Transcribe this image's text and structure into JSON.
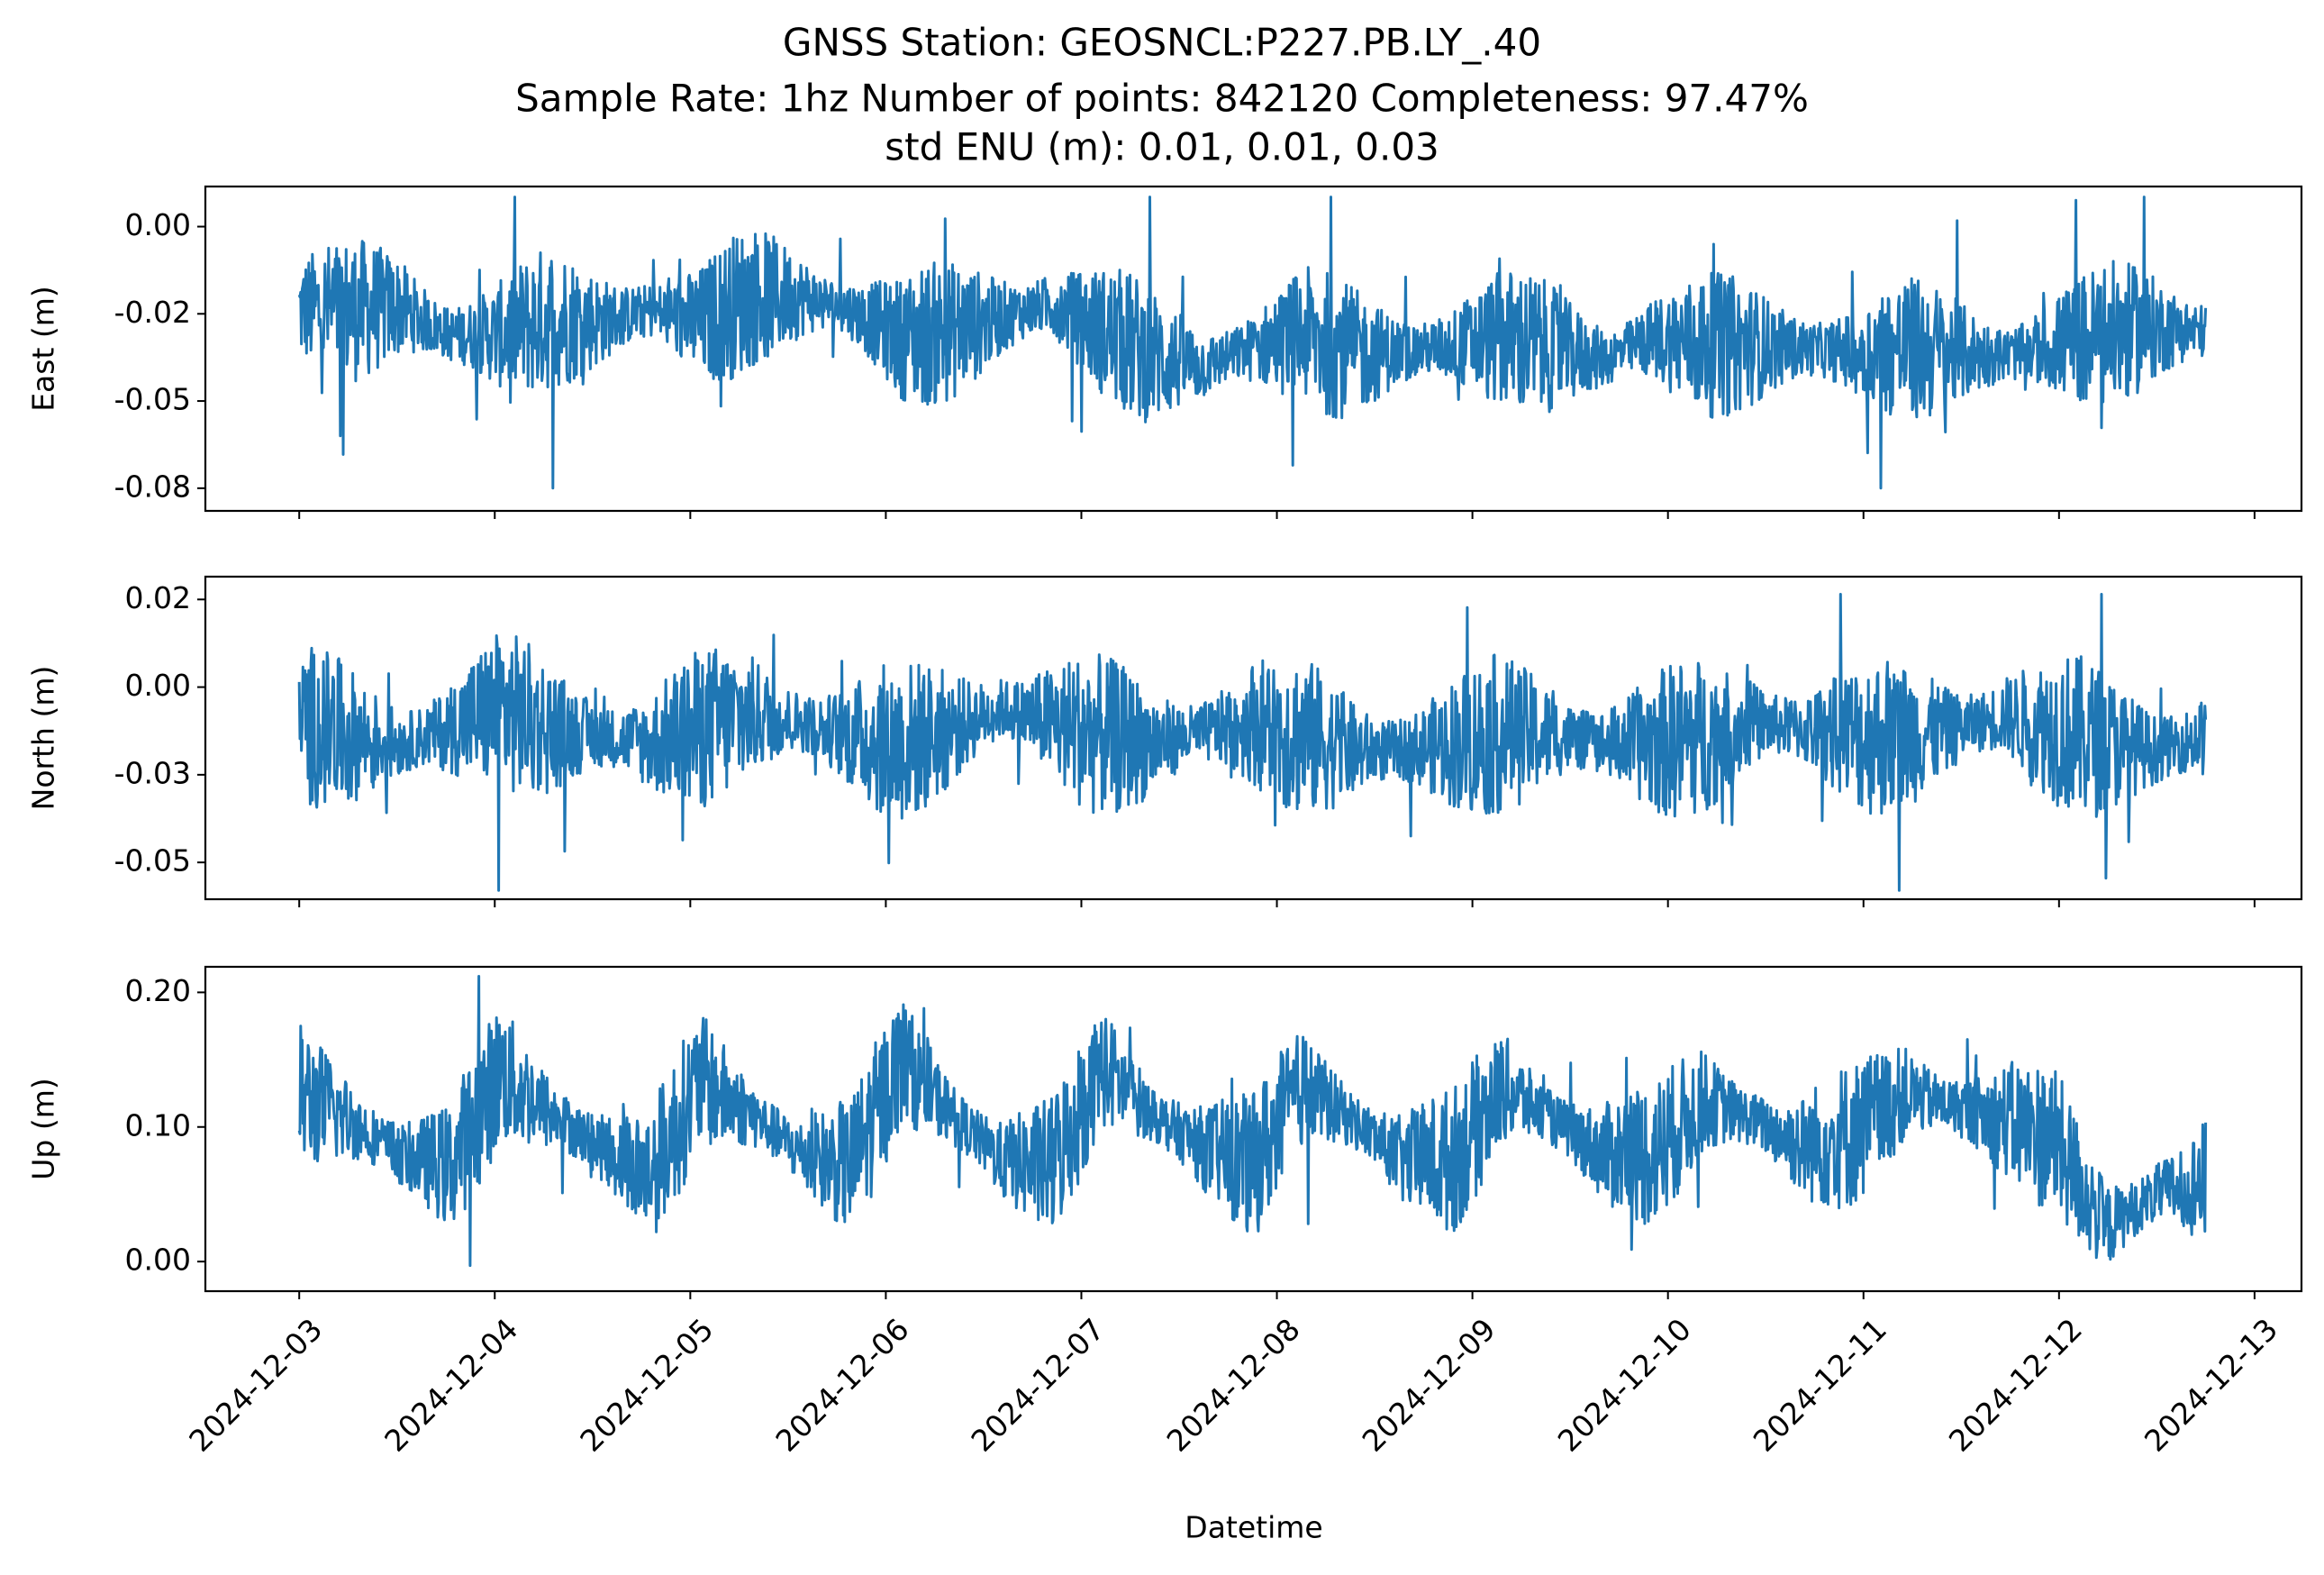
{
  "chart_data": {
    "type": "line",
    "title": [
      "GNSS Station: GEOSNCL:P227.PB.LY_.40",
      "Sample Rate: 1hz   Number of points: 842120    Completeness:  97.47%",
      "std ENU (m):  0.01, 0.01, 0.03"
    ],
    "xlabel": "Datetime",
    "x_ticks": [
      "2024-12-03",
      "2024-12-04",
      "2024-12-05",
      "2024-12-06",
      "2024-12-07",
      "2024-12-08",
      "2024-12-09",
      "2024-12-10",
      "2024-12-11",
      "2024-12-12",
      "2024-12-13"
    ],
    "x_range_days": [
      -0.48,
      10.24
    ],
    "data_range_days": [
      0.0,
      9.75
    ],
    "series_color": "#1f77b4",
    "panels": [
      {
        "name": "East",
        "ylabel": "East (m)",
        "ylim": [
          -0.0815,
          0.0115
        ],
        "y_ticks": [
          0.0,
          -0.025,
          -0.05,
          -0.075
        ],
        "y_tick_labels": [
          "0.00",
          "-0.02",
          "-0.05",
          "-0.08"
        ],
        "center_profile": [
          -0.024,
          -0.024,
          -0.023,
          -0.031,
          -0.031,
          -0.026,
          -0.027,
          -0.024,
          -0.028,
          -0.02,
          -0.02,
          -0.024,
          -0.032,
          -0.03,
          -0.026,
          -0.022,
          -0.03,
          -0.037,
          -0.04,
          -0.035,
          -0.031,
          -0.036,
          -0.036,
          -0.034,
          -0.032,
          -0.035,
          -0.038,
          -0.032,
          -0.034,
          -0.034,
          -0.035,
          -0.036,
          -0.035,
          -0.036,
          -0.037,
          -0.034,
          -0.031,
          -0.029,
          -0.03
        ],
        "half_range": 0.019,
        "min": -0.075,
        "max": 0.0085
      },
      {
        "name": "North",
        "ylabel": "North (m)",
        "ylim": [
          -0.0605,
          0.0315
        ],
        "y_ticks": [
          0.025,
          0.0,
          -0.025,
          -0.05
        ],
        "y_tick_labels": [
          "0.02",
          "0.00",
          "-0.03",
          "-0.05"
        ],
        "center_profile": [
          -0.01,
          -0.014,
          -0.016,
          -0.012,
          -0.006,
          -0.012,
          -0.014,
          -0.016,
          -0.012,
          -0.008,
          -0.01,
          -0.014,
          -0.016,
          -0.012,
          -0.006,
          -0.01,
          -0.014,
          -0.016,
          -0.013,
          -0.01,
          -0.014,
          -0.018,
          -0.018,
          -0.016,
          -0.013,
          -0.014,
          -0.016,
          -0.016,
          -0.014,
          -0.01,
          -0.012,
          -0.014,
          -0.014,
          -0.012,
          -0.008,
          -0.012,
          -0.016,
          -0.018,
          -0.014
        ],
        "half_range": 0.021,
        "min": -0.058,
        "max": 0.0265
      },
      {
        "name": "Up",
        "ylabel": "Up (m)",
        "ylim": [
          -0.022,
          0.219
        ],
        "y_ticks": [
          0.0,
          0.1,
          0.2
        ],
        "y_tick_labels": [
          "0.00",
          "0.10",
          "0.20"
        ],
        "center_profile": [
          0.125,
          0.105,
          0.08,
          0.07,
          0.14,
          0.11,
          0.085,
          0.065,
          0.135,
          0.11,
          0.08,
          0.07,
          0.15,
          0.11,
          0.075,
          0.07,
          0.145,
          0.11,
          0.085,
          0.07,
          0.13,
          0.105,
          0.075,
          0.075,
          0.13,
          0.105,
          0.08,
          0.08,
          0.12,
          0.105,
          0.085,
          0.095,
          0.125,
          0.115,
          0.105,
          0.09,
          0.025,
          0.05,
          0.06
        ],
        "half_range": 0.05,
        "min": -0.003,
        "max": 0.212
      }
    ]
  }
}
